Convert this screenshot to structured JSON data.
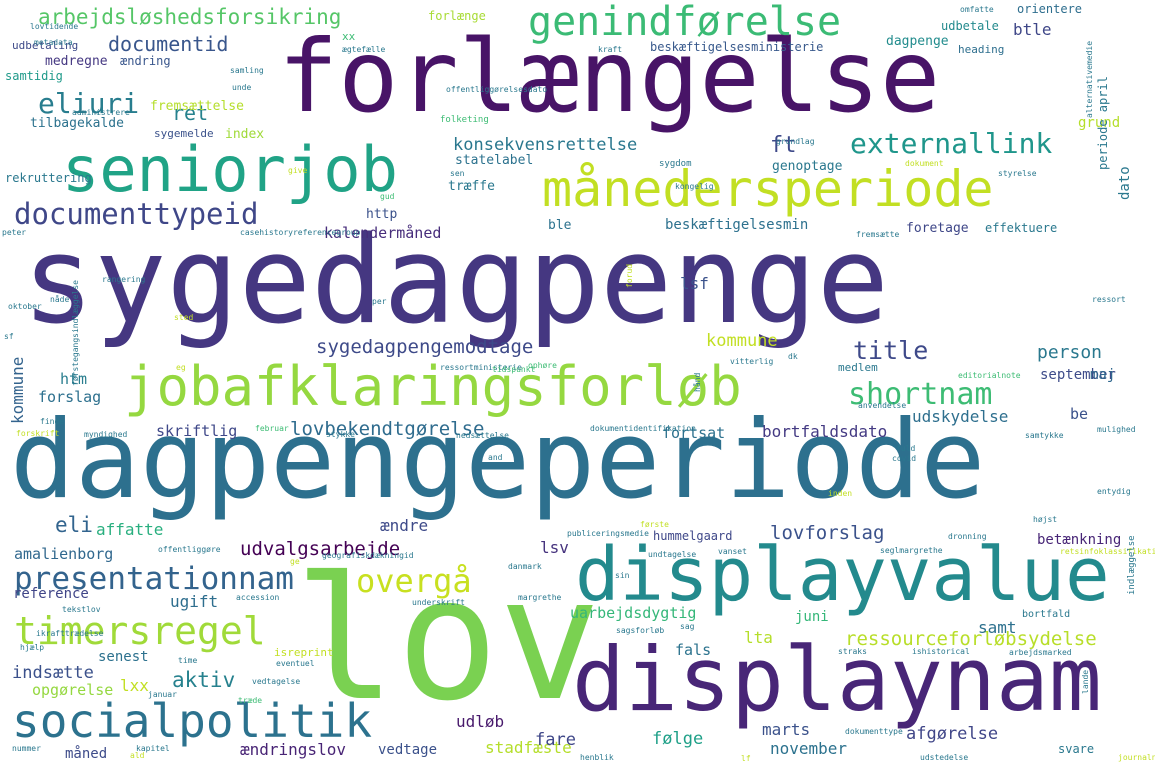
{
  "words": [
    {
      "text": "sygedagpenge",
      "color": "#453781"
    },
    {
      "text": "dagpengeperiode",
      "color": "#2d708e"
    },
    {
      "text": "lov",
      "color": "#7ad151"
    },
    {
      "text": "forlængelse",
      "color": "#481467"
    },
    {
      "text": "displaynam",
      "color": "#482677"
    },
    {
      "text": "displayvalue",
      "color": "#238a8d"
    },
    {
      "text": "seniorjob",
      "color": "#20a386"
    },
    {
      "text": "jobafklaringsforløb",
      "color": "#95d840"
    },
    {
      "text": "månedersperiode",
      "color": "#c2df23"
    },
    {
      "text": "socialpolitik",
      "color": "#2c728e"
    },
    {
      "text": "genindførelse",
      "color": "#3bbb75"
    },
    {
      "text": "timersregel",
      "color": "#a0da39"
    },
    {
      "text": "presentationnam",
      "color": "#33638d"
    },
    {
      "text": "documenttypeid",
      "color": "#3f4788"
    },
    {
      "text": "overgå",
      "color": "#c8e020"
    },
    {
      "text": "shortnam",
      "color": "#3dbc74"
    },
    {
      "text": "externallink",
      "color": "#1f968b"
    },
    {
      "text": "eliuri",
      "color": "#287d8e"
    },
    {
      "text": "arbejdsløshedsforsikring",
      "color": "#55c667"
    },
    {
      "text": "documentid",
      "color": "#39568c"
    },
    {
      "text": "udvalgsarbejde",
      "color": "#440154"
    },
    {
      "text": "ressourceforløbsydelse",
      "color": "#b8de29"
    },
    {
      "text": "sygedagpengemodtage",
      "color": "#3e4a89"
    },
    {
      "text": "lovbekendtgørelse",
      "color": "#2f6c8e"
    },
    {
      "text": "konsekvensrettelse",
      "color": "#2a778e"
    },
    {
      "text": "beskæftigelsesmin",
      "color": "#2d718e"
    },
    {
      "text": "beskæftigelsesministerie",
      "color": "#38598c"
    },
    {
      "text": "kalendermåned",
      "color": "#472d7b"
    },
    {
      "text": "bortfaldsdato",
      "color": "#443a83"
    },
    {
      "text": "udskydelse",
      "color": "#2e6f8e"
    },
    {
      "text": "uarbejdsdygtig",
      "color": "#35b779"
    },
    {
      "text": "ændringslov",
      "color": "#482475"
    },
    {
      "text": "amalienborg",
      "color": "#31688e"
    },
    {
      "text": "opgørelse",
      "color": "#95d840"
    },
    {
      "text": "indsætte",
      "color": "#3b518b"
    },
    {
      "text": "afgørelse",
      "color": "#404688"
    },
    {
      "text": "november",
      "color": "#2c728e"
    },
    {
      "text": "lovforslag",
      "color": "#3b528b"
    },
    {
      "text": "betænkning",
      "color": "#482677"
    },
    {
      "text": "hummelgaard",
      "color": "#3f4889"
    },
    {
      "text": "stadfæste",
      "color": "#b5de2b"
    },
    {
      "text": "vedtage",
      "color": "#3b518b"
    },
    {
      "text": "måned",
      "color": "#3e4c8a"
    },
    {
      "text": "title",
      "color": "#3e4989"
    },
    {
      "text": "person",
      "color": "#2a788e"
    },
    {
      "text": "ret",
      "color": "#26828e"
    },
    {
      "text": "eli",
      "color": "#32648e"
    },
    {
      "text": "aktiv",
      "color": "#26818e"
    },
    {
      "text": "fare",
      "color": "#3f4788"
    },
    {
      "text": "følge",
      "color": "#1fa088"
    },
    {
      "text": "lta",
      "color": "#b5de2b"
    },
    {
      "text": "ft",
      "color": "#3e4989"
    },
    {
      "text": "lsf",
      "color": "#3b528b"
    },
    {
      "text": "lsv",
      "color": "#46337e"
    },
    {
      "text": "juni",
      "color": "#35b779"
    },
    {
      "text": "samt",
      "color": "#2d708e"
    },
    {
      "text": "marts",
      "color": "#3b528b"
    },
    {
      "text": "fals",
      "color": "#2c738e"
    },
    {
      "text": "udløb",
      "color": "#481a6c"
    },
    {
      "text": "senest",
      "color": "#2c718e"
    },
    {
      "text": "ugift",
      "color": "#2e6e8e"
    },
    {
      "text": "reference",
      "color": "#404588"
    },
    {
      "text": "ændre",
      "color": "#3e4a89"
    },
    {
      "text": "affatte",
      "color": "#29af7f"
    },
    {
      "text": "skriftlig",
      "color": "#3f4889"
    },
    {
      "text": "fortsat",
      "color": "#2d718e"
    },
    {
      "text": "forslag",
      "color": "#2d708e"
    },
    {
      "text": "htm",
      "color": "#287d8e"
    },
    {
      "text": "kommune",
      "color": "#33638d"
    },
    {
      "text": "september",
      "color": "#c2df23"
    },
    {
      "text": "maj",
      "color": "#3e4c8a"
    },
    {
      "text": "be",
      "color": "#31688e"
    },
    {
      "text": "btle",
      "color": "#3b528b"
    },
    {
      "text": "dagpenge",
      "color": "#3f4788"
    },
    {
      "text": "heading",
      "color": "#228c8d"
    },
    {
      "text": "orientere",
      "color": "#2e6f8e"
    },
    {
      "text": "udbetale",
      "color": "#2e6e8e"
    },
    {
      "text": "forlænge",
      "color": "#238a8d"
    },
    {
      "text": "medregne",
      "color": "#a8db34"
    },
    {
      "text": "ændring",
      "color": "#453882"
    },
    {
      "text": "samtidig",
      "color": "#39568c"
    },
    {
      "text": "fremsættelse",
      "color": "#1f9a8a"
    },
    {
      "text": "tilbagekalde",
      "color": "#b5de2b"
    },
    {
      "text": "sygemelde",
      "color": "#2c728e"
    },
    {
      "text": "index",
      "color": "#3b528b"
    },
    {
      "text": "statelabel",
      "color": "#a0da39"
    },
    {
      "text": "træffe",
      "color": "#2c728e"
    },
    {
      "text": "http",
      "color": "#2a788e"
    },
    {
      "text": "ble",
      "color": "#3b528b"
    },
    {
      "text": "foretage",
      "color": "#2c728e"
    },
    {
      "text": "effektuere",
      "color": "#3f4788"
    },
    {
      "text": "genoptage",
      "color": "#2a788e"
    },
    {
      "text": "rekruttering",
      "color": "#2a788e"
    },
    {
      "text": "grund",
      "color": "#2a788e"
    },
    {
      "text": "dato",
      "color": "#b5de2b"
    },
    {
      "text": "periode april",
      "color": "#2a788e"
    },
    {
      "text": "udbetaling",
      "color": "#2a788e"
    },
    {
      "text": "xx",
      "color": "#3e4a89"
    },
    {
      "text": "ægtefælle",
      "color": "#3dbc74"
    },
    {
      "text": "offentliggørelsesdato",
      "color": "#2a788e"
    },
    {
      "text": "folketing",
      "color": "#2a788e"
    },
    {
      "text": "sygdom",
      "color": "#3dbc74"
    },
    {
      "text": "samling",
      "color": "#2a788e"
    },
    {
      "text": "kraft",
      "color": "#2a788e"
    },
    {
      "text": "omfatte",
      "color": "#2a788e"
    },
    {
      "text": "lovtidende",
      "color": "#2a788e"
    },
    {
      "text": "metadata",
      "color": "#2a788e"
    },
    {
      "text": "unde",
      "color": "#2a788e"
    },
    {
      "text": "administrere",
      "color": "#2a788e"
    },
    {
      "text": "sen",
      "color": "#2a788e"
    },
    {
      "text": "give",
      "color": "#2a788e"
    },
    {
      "text": "gud",
      "color": "#c2df23"
    },
    {
      "text": "kongelig",
      "color": "#3dbc74"
    },
    {
      "text": "styrelse",
      "color": "#2a788e"
    },
    {
      "text": "dokument",
      "color": "#2a788e"
    },
    {
      "text": "grundlag",
      "color": "#c2df23"
    },
    {
      "text": "peter",
      "color": "#2a788e"
    },
    {
      "text": "casehistoryreferencegroup",
      "color": "#2a788e"
    },
    {
      "text": "fremsætte",
      "color": "#2a788e"
    },
    {
      "text": "ressort",
      "color": "#2a788e"
    },
    {
      "text": "rangering",
      "color": "#2a788e"
    },
    {
      "text": "nåde",
      "color": "#2a788e"
    },
    {
      "text": "per",
      "color": "#2a788e"
    },
    {
      "text": "sted",
      "color": "#2a788e"
    },
    {
      "text": "oktober",
      "color": "#c2df23"
    },
    {
      "text": "sf",
      "color": "#2a788e"
    },
    {
      "text": "ressortministerie",
      "color": "#2a788e"
    },
    {
      "text": "tidspunkt",
      "color": "#2a788e"
    },
    {
      "text": "ophøre",
      "color": "#3dbc74"
    },
    {
      "text": "vitterlig",
      "color": "#3dbc74"
    },
    {
      "text": "dk",
      "color": "#2a788e"
    },
    {
      "text": "medlem",
      "color": "#2a788e"
    },
    {
      "text": "editorialnote",
      "color": "#2a788e"
    },
    {
      "text": "anvendelse",
      "color": "#3dbc74"
    },
    {
      "text": "mulighed",
      "color": "#2a788e"
    },
    {
      "text": "samtykke",
      "color": "#2a788e"
    },
    {
      "text": "februar",
      "color": "#2a788e"
    },
    {
      "text": "stykke",
      "color": "#3dbc74"
    },
    {
      "text": "nedsættelse",
      "color": "#2a788e"
    },
    {
      "text": "dokumentidentifikation",
      "color": "#2a788e"
    },
    {
      "text": "myndighed",
      "color": "#2a788e"
    },
    {
      "text": "forskrift",
      "color": "#2a788e"
    },
    {
      "text": "fuld",
      "color": "#c2df23"
    },
    {
      "text": "covid",
      "color": "#2a788e"
    },
    {
      "text": "inden",
      "color": "#2a788e"
    },
    {
      "text": "entydig",
      "color": "#c2df23"
    },
    {
      "text": "første",
      "color": "#2a788e"
    },
    {
      "text": "geografiskdækningid",
      "color": "#c2df23"
    },
    {
      "text": "publiceringsmedie",
      "color": "#2a788e"
    },
    {
      "text": "højst",
      "color": "#2a788e"
    },
    {
      "text": "offentliggøre",
      "color": "#2a788e"
    },
    {
      "text": "dronning",
      "color": "#2a788e"
    },
    {
      "text": "seglmargrethe",
      "color": "#2a788e"
    },
    {
      "text": "retsinfoklassifikationid",
      "color": "#2a788e"
    },
    {
      "text": "undtagelse",
      "color": "#c2df23"
    },
    {
      "text": "vanset",
      "color": "#2a788e"
    },
    {
      "text": "danmark",
      "color": "#2a788e"
    },
    {
      "text": "tekstlov",
      "color": "#2a788e"
    },
    {
      "text": "accession",
      "color": "#2a788e"
    },
    {
      "text": "underskrift",
      "color": "#2a788e"
    },
    {
      "text": "margrethe",
      "color": "#2a788e"
    },
    {
      "text": "sin",
      "color": "#2a788e"
    },
    {
      "text": "sag",
      "color": "#2a788e"
    },
    {
      "text": "sagsforløb",
      "color": "#2a788e"
    },
    {
      "text": "ikrafttrædelse",
      "color": "#2a788e"
    },
    {
      "text": "hjælp",
      "color": "#2a788e"
    },
    {
      "text": "isreprint",
      "color": "#2a788e"
    },
    {
      "text": "time",
      "color": "#c2df23"
    },
    {
      "text": "eventuel",
      "color": "#2a788e"
    },
    {
      "text": "straks",
      "color": "#2a788e"
    },
    {
      "text": "ishistorical",
      "color": "#2a788e"
    },
    {
      "text": "arbejdsmarked",
      "color": "#2a788e"
    },
    {
      "text": "januar",
      "color": "#2a788e"
    },
    {
      "text": "træde",
      "color": "#2a788e"
    },
    {
      "text": "vedtagelse",
      "color": "#3dbc74"
    },
    {
      "text": "nummer",
      "color": "#2a788e"
    },
    {
      "text": "kapitel",
      "color": "#2a788e"
    },
    {
      "text": "dokumenttype",
      "color": "#2a788e"
    },
    {
      "text": "henblik",
      "color": "#2a788e"
    },
    {
      "text": "udstedelse",
      "color": "#2a788e"
    },
    {
      "text": "journalnummer",
      "color": "#2a788e"
    },
    {
      "text": "svare",
      "color": "#c2df23"
    },
    {
      "text": "bortfald",
      "color": "#2a788e"
    },
    {
      "text": "alternativemedie",
      "color": "#2a788e"
    },
    {
      "text": "indlæggelse",
      "color": "#2a788e"
    },
    {
      "text": "førstegangsindlæggelse",
      "color": "#2a788e"
    },
    {
      "text": "forud",
      "color": "#2a788e"
    },
    {
      "text": "lande",
      "color": "#2a788e"
    },
    {
      "text": "hånd",
      "color": "#2a788e"
    },
    {
      "text": "ald",
      "color": "#2a788e"
    },
    {
      "text": "eg",
      "color": "#c2df23"
    },
    {
      "text": "lxx",
      "color": "#c2df23"
    },
    {
      "text": "lf",
      "color": "#c2df23"
    },
    {
      "text": "and",
      "color": "#c2df23"
    },
    {
      "text": "ge",
      "color": "#2a788e"
    },
    {
      "text": "finde",
      "color": "#c2df23"
    },
    {
      "text": "år",
      "color": "#2a788e"
    }
  ]
}
